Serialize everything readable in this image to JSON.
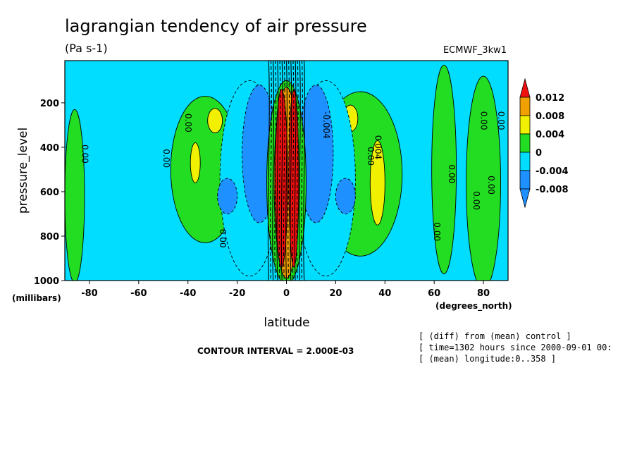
{
  "title": "lagrangian tendency of air pressure",
  "units": "(Pa s-1)",
  "model": "ECMWF_3kw1",
  "contour_interval_text": "CONTOUR INTERVAL = 2.000E-03",
  "info_lines": [
    "[ (diff) from (mean) control ]",
    "[ time=1302 hours since 2000-09-01 00:",
    "[ (mean) longitude:0..358 ]"
  ],
  "colors": {
    "red": "#f01010",
    "orange": "#f0a000",
    "yellow": "#f0f000",
    "green": "#22dd22",
    "cyan": "#00ddff",
    "blue": "#1e90ff"
  },
  "chart_data": {
    "type": "heatmap",
    "title": "lagrangian tendency of air pressure",
    "subtitle": "(Pa s-1)",
    "xlabel": "latitude",
    "xunits": "(degrees_north)",
    "ylabel": "pressure_level",
    "yunits": "(millibars)",
    "xlim": [
      -90,
      90
    ],
    "ylim": [
      1000,
      10
    ],
    "x_ticks": [
      "-80",
      "-60",
      "-40",
      "-20",
      "0",
      "20",
      "40",
      "60",
      "80"
    ],
    "y_ticks": [
      "200",
      "400",
      "600",
      "800",
      "1000"
    ],
    "colorbar": {
      "labels": [
        "0.012",
        "0.008",
        "0.004",
        "0",
        "-0.004",
        "-0.008"
      ],
      "levels": [
        0.012,
        0.008,
        0.004,
        0,
        -0.004,
        -0.008
      ]
    },
    "contour_labels": [
      "0.00",
      "0.00",
      "0.00",
      "0.00",
      "-0.004",
      "0.00",
      "0.004",
      "0.00",
      "0.00",
      "0.00",
      "0.00",
      "0.00",
      "0.00"
    ],
    "regions": [
      {
        "value": 0.002,
        "band": "green",
        "shape": "ellipse",
        "lat": -33,
        "p": 500,
        "rlat": 14,
        "rp": 330
      },
      {
        "value": 0.006,
        "band": "yellow",
        "shape": "ellipse",
        "lat": -29,
        "p": 280,
        "rlat": 3,
        "rp": 55
      },
      {
        "value": 0.006,
        "band": "yellow",
        "shape": "ellipse",
        "lat": -37,
        "p": 470,
        "rlat": 2,
        "rp": 90
      },
      {
        "value": 0.002,
        "band": "green",
        "shape": "ellipse",
        "lat": 30,
        "p": 520,
        "rlat": 17,
        "rp": 370
      },
      {
        "value": 0.006,
        "band": "yellow",
        "shape": "ellipse",
        "lat": 26,
        "p": 270,
        "rlat": 3,
        "rp": 60
      },
      {
        "value": 0.006,
        "band": "yellow",
        "shape": "ellipse",
        "lat": 37,
        "p": 560,
        "rlat": 3,
        "rp": 190
      },
      {
        "value": 0.002,
        "band": "green",
        "shape": "ellipse",
        "lat": 80,
        "p": 560,
        "rlat": 7,
        "rp": 480
      },
      {
        "value": 0.002,
        "band": "green",
        "shape": "ellipse",
        "lat": 64,
        "p": 500,
        "rlat": 5,
        "rp": 470
      },
      {
        "value": 0.002,
        "band": "green",
        "shape": "ellipse",
        "lat": -86,
        "p": 620,
        "rlat": 4,
        "rp": 390
      },
      {
        "value": -0.002,
        "band": "cyan",
        "shape": "ellipse",
        "lat": -15,
        "p": 540,
        "rlat": 12,
        "rp": 440
      },
      {
        "value": -0.002,
        "band": "cyan",
        "shape": "ellipse",
        "lat": 16,
        "p": 540,
        "rlat": 12,
        "rp": 440
      },
      {
        "value": -0.006,
        "band": "blue",
        "shape": "ellipse",
        "lat": -11,
        "p": 430,
        "rlat": 7,
        "rp": 310
      },
      {
        "value": -0.006,
        "band": "blue",
        "shape": "ellipse",
        "lat": 12,
        "p": 430,
        "rlat": 7,
        "rp": 310
      },
      {
        "value": -0.006,
        "band": "blue",
        "shape": "ellipse",
        "lat": -24,
        "p": 620,
        "rlat": 4,
        "rp": 80
      },
      {
        "value": -0.006,
        "band": "blue",
        "shape": "ellipse",
        "lat": 24,
        "p": 620,
        "rlat": 4,
        "rp": 80
      },
      {
        "value": 0.002,
        "band": "green",
        "shape": "ellipse",
        "lat": 0,
        "p": 560,
        "rlat": 8,
        "rp": 460
      },
      {
        "value": 0.01,
        "band": "orange",
        "shape": "ellipse",
        "lat": 0,
        "p": 560,
        "rlat": 5,
        "rp": 430
      },
      {
        "value": 0.012,
        "band": "red",
        "shape": "ellipse",
        "lat": -2,
        "p": 540,
        "rlat": 2.5,
        "rp": 400
      },
      {
        "value": 0.012,
        "band": "red",
        "shape": "ellipse",
        "lat": 3,
        "p": 540,
        "rlat": 2,
        "rp": 400
      }
    ]
  }
}
